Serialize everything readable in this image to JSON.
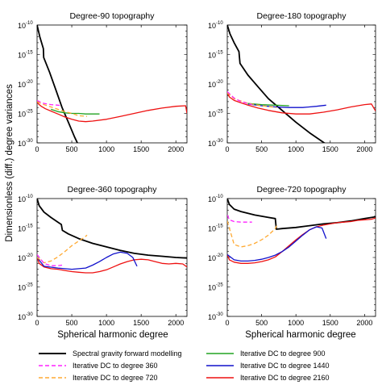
{
  "figure": {
    "ylabel": "Dimensionless (diff.) degree variances",
    "xlabel": "Spherical harmonic degree"
  },
  "legend": [
    {
      "key": "sgfm",
      "label": "Spectral gravity forward modelling",
      "color": "#000000",
      "dash": "solid"
    },
    {
      "key": "dc900",
      "label": "Iterative DC to degree 900",
      "color": "#22a322",
      "dash": "solid"
    },
    {
      "key": "dc360",
      "label": "Iterative DC to degree 360",
      "color": "#ff22ff",
      "dash": "dashed"
    },
    {
      "key": "dc1440",
      "label": "Iterative DC to degree 1440",
      "color": "#1111cc",
      "dash": "solid"
    },
    {
      "key": "dc720",
      "label": "Iterative DC to degree 720",
      "color": "#ffaa33",
      "dash": "dashed"
    },
    {
      "key": "dc2160",
      "label": "Iterative DC to degree 2160",
      "color": "#ee1111",
      "dash": "solid"
    }
  ],
  "chart_data": [
    {
      "type": "line",
      "title": "Degree-90 topography",
      "xlim": [
        0,
        2160
      ],
      "ylim_log10": [
        -30,
        -10
      ],
      "y_scale": "log",
      "x_ticks": [
        "0",
        "500",
        "1000",
        "1500",
        "2000"
      ],
      "y_ticks": [
        {
          "base": "10",
          "exp": "-10"
        },
        {
          "base": "10",
          "exp": "-15"
        },
        {
          "base": "10",
          "exp": "-20"
        },
        {
          "base": "10",
          "exp": "-25"
        },
        {
          "base": "10",
          "exp": "-30"
        }
      ],
      "series": [
        {
          "key": "sgfm",
          "x": [
            0,
            40,
            90,
            95,
            180,
            270,
            360,
            450,
            540,
            600
          ],
          "y_log10": [
            -10,
            -12,
            -14,
            -15.5,
            -18,
            -21,
            -24,
            -26.5,
            -29,
            -30.5
          ]
        },
        {
          "key": "dc2160",
          "x": [
            0,
            20,
            60,
            120,
            200,
            300,
            400,
            500,
            600,
            700,
            800,
            1000,
            1200,
            1400,
            1600,
            1800,
            2000,
            2140,
            2160
          ],
          "y_log10": [
            -23,
            -23.4,
            -23.8,
            -24.2,
            -24.6,
            -25.1,
            -25.6,
            -26,
            -26.3,
            -26.4,
            -26.3,
            -26,
            -25.5,
            -25,
            -24.5,
            -24.1,
            -23.8,
            -23.7,
            -25
          ]
        },
        {
          "key": "dc900",
          "x": [
            200,
            300,
            400,
            500,
            600,
            700,
            800,
            900
          ],
          "y_log10": [
            -24.3,
            -24.7,
            -24.9,
            -25.0,
            -25.0,
            -25.1,
            -25.1,
            -25.1
          ]
        },
        {
          "key": "dc720",
          "x": [
            0,
            50,
            100,
            200,
            300,
            400,
            500,
            600,
            720
          ],
          "y_log10": [
            -23,
            -23.3,
            -23.5,
            -23.9,
            -24.3,
            -24.7,
            -25,
            -25.4,
            -25.5
          ]
        },
        {
          "key": "dc360",
          "x": [
            0,
            50,
            100,
            200,
            300,
            360
          ],
          "y_log10": [
            -22.8,
            -23.1,
            -23.3,
            -23.5,
            -23.6,
            -23.7
          ]
        }
      ]
    },
    {
      "type": "line",
      "title": "Degree-180 topography",
      "xlim": [
        0,
        2160
      ],
      "ylim_log10": [
        -30,
        -10
      ],
      "y_scale": "log",
      "x_ticks": [
        "0",
        "500",
        "1000",
        "1500",
        "2000"
      ],
      "y_ticks": [
        {
          "base": "10",
          "exp": "-10"
        },
        {
          "base": "10",
          "exp": "-15"
        },
        {
          "base": "10",
          "exp": "-20"
        },
        {
          "base": "10",
          "exp": "-25"
        },
        {
          "base": "10",
          "exp": "-30"
        }
      ],
      "series": [
        {
          "key": "sgfm",
          "x": [
            0,
            40,
            100,
            170,
            185,
            300,
            450,
            600,
            800,
            1000,
            1200,
            1450
          ],
          "y_log10": [
            -10,
            -11.5,
            -13,
            -14.5,
            -16.5,
            -18.5,
            -20.5,
            -22.5,
            -24.5,
            -26.5,
            -28.3,
            -30.3
          ]
        },
        {
          "key": "dc2160",
          "x": [
            0,
            30,
            100,
            200,
            300,
            450,
            600,
            800,
            1000,
            1200,
            1400,
            1600,
            1800,
            2000,
            2100,
            2160
          ],
          "y_log10": [
            -21.5,
            -22.2,
            -22.8,
            -23.2,
            -23.6,
            -24.1,
            -24.5,
            -24.9,
            -25.1,
            -25.1,
            -24.8,
            -24.4,
            -23.9,
            -23.5,
            -23.4,
            -24.6
          ]
        },
        {
          "key": "dc1440",
          "x": [
            300,
            500,
            700,
            900,
            1100,
            1300,
            1440
          ],
          "y_log10": [
            -23.4,
            -23.7,
            -23.9,
            -24.0,
            -24.0,
            -23.8,
            -23.6
          ]
        },
        {
          "key": "dc900",
          "x": [
            300,
            500,
            700,
            900
          ],
          "y_log10": [
            -23.3,
            -23.5,
            -23.6,
            -23.7
          ]
        },
        {
          "key": "dc720",
          "x": [
            0,
            100,
            300,
            500,
            720
          ],
          "y_log10": [
            -21.5,
            -22.5,
            -23.3,
            -23.7,
            -24.0
          ]
        },
        {
          "key": "dc360",
          "x": [
            0,
            100,
            200,
            360
          ],
          "y_log10": [
            -21.3,
            -22.4,
            -23.0,
            -23.5
          ]
        }
      ]
    },
    {
      "type": "line",
      "title": "Degree-360 topography",
      "xlim": [
        0,
        2160
      ],
      "ylim_log10": [
        -30,
        -10
      ],
      "y_scale": "log",
      "x_ticks": [
        "0",
        "500",
        "1000",
        "1500",
        "2000"
      ],
      "y_ticks": [
        {
          "base": "10",
          "exp": "-10"
        },
        {
          "base": "10",
          "exp": "-15"
        },
        {
          "base": "10",
          "exp": "-20"
        },
        {
          "base": "10",
          "exp": "-25"
        },
        {
          "base": "10",
          "exp": "-30"
        }
      ],
      "series": [
        {
          "key": "sgfm",
          "x": [
            0,
            30,
            100,
            200,
            300,
            350,
            365,
            450,
            600,
            800,
            1000,
            1200,
            1400,
            1600,
            1800,
            2000,
            2160
          ],
          "y_log10": [
            -10,
            -11.2,
            -12.3,
            -13.2,
            -14.0,
            -14.4,
            -15.4,
            -16.0,
            -16.8,
            -17.6,
            -18.2,
            -18.8,
            -19.3,
            -19.6,
            -19.8,
            -20.0,
            -20.1
          ]
        },
        {
          "key": "dc2160",
          "x": [
            0,
            30,
            100,
            200,
            300,
            400,
            500,
            600,
            700,
            800,
            900,
            1000,
            1100,
            1200,
            1300,
            1400,
            1500,
            1600,
            1700,
            1800,
            1900,
            2000,
            2100,
            2160
          ],
          "y_log10": [
            -20.0,
            -21.0,
            -21.6,
            -21.9,
            -22.0,
            -22.2,
            -22.4,
            -22.5,
            -22.6,
            -22.6,
            -22.4,
            -22.1,
            -21.6,
            -21.1,
            -20.7,
            -20.4,
            -20.3,
            -20.4,
            -20.7,
            -21.0,
            -21.1,
            -21.0,
            -21.1,
            -21.6
          ]
        },
        {
          "key": "dc1440",
          "x": [
            0,
            100,
            300,
            500,
            700,
            800,
            900,
            1000,
            1100,
            1200,
            1300,
            1380,
            1440
          ],
          "y_log10": [
            -20.0,
            -21.5,
            -21.8,
            -22.0,
            -21.8,
            -21.3,
            -20.7,
            -20.0,
            -19.4,
            -19.1,
            -19.3,
            -20.0,
            -21.5
          ]
        },
        {
          "key": "dc720",
          "x": [
            0,
            100,
            200,
            300,
            400,
            500,
            600,
            680,
            720
          ],
          "y_log10": [
            -20.0,
            -20.9,
            -20.6,
            -19.9,
            -19.0,
            -18.0,
            -17.2,
            -16.6,
            -16.2
          ]
        },
        {
          "key": "dc360",
          "x": [
            0,
            100,
            200,
            300,
            360
          ],
          "y_log10": [
            -19.5,
            -21.0,
            -21.4,
            -21.4,
            -21.3
          ]
        }
      ]
    },
    {
      "type": "line",
      "title": "Degree-720 topography",
      "xlim": [
        0,
        2160
      ],
      "ylim_log10": [
        -30,
        -10
      ],
      "y_scale": "log",
      "x_ticks": [
        "0",
        "500",
        "1000",
        "1500",
        "2000"
      ],
      "y_ticks": [
        {
          "base": "10",
          "exp": "-10"
        },
        {
          "base": "10",
          "exp": "-15"
        },
        {
          "base": "10",
          "exp": "-20"
        },
        {
          "base": "10",
          "exp": "-25"
        },
        {
          "base": "10",
          "exp": "-30"
        }
      ],
      "series": [
        {
          "key": "sgfm",
          "x": [
            0,
            30,
            100,
            200,
            300,
            400,
            500,
            600,
            700,
            715,
            800,
            1000,
            1200,
            1400,
            1600,
            1800,
            2000,
            2160
          ],
          "y_log10": [
            -10,
            -11,
            -11.8,
            -12.2,
            -12.5,
            -12.8,
            -13.0,
            -13.2,
            -13.4,
            -15.2,
            -15.1,
            -14.9,
            -14.6,
            -14.3,
            -14.1,
            -13.8,
            -13.4,
            -13.1
          ]
        },
        {
          "key": "dc2160",
          "x": [
            0,
            30,
            100,
            200,
            300,
            400,
            500,
            600,
            700,
            800,
            900,
            1000,
            1100,
            1200,
            1300,
            1400,
            1500,
            1600,
            1700,
            1800,
            1900,
            2000,
            2100,
            2160
          ],
          "y_log10": [
            -19.5,
            -20.4,
            -20.8,
            -21.0,
            -21.0,
            -20.9,
            -20.7,
            -20.4,
            -19.9,
            -19.0,
            -18.0,
            -17.0,
            -16.1,
            -15.3,
            -14.8,
            -14.5,
            -14.3,
            -14.1,
            -14.0,
            -13.9,
            -13.7,
            -13.6,
            -13.5,
            -13.3
          ]
        },
        {
          "key": "dc1440",
          "x": [
            0,
            100,
            200,
            300,
            400,
            500,
            600,
            700,
            800,
            900,
            1000,
            1100,
            1200,
            1300,
            1380,
            1440
          ],
          "y_log10": [
            -19.5,
            -20.4,
            -20.6,
            -20.6,
            -20.5,
            -20.3,
            -20.0,
            -19.6,
            -19.0,
            -18.2,
            -17.2,
            -16.2,
            -15.3,
            -14.8,
            -15.0,
            -16.8
          ]
        },
        {
          "key": "dc720",
          "x": [
            0,
            100,
            200,
            300,
            400,
            500,
            600,
            700,
            720
          ],
          "y_log10": [
            -13.8,
            -17.8,
            -18.2,
            -18.0,
            -17.6,
            -17.0,
            -16.2,
            -15.1,
            -14.6
          ]
        },
        {
          "key": "dc360",
          "x": [
            0,
            30,
            100,
            200,
            300,
            360
          ],
          "y_log10": [
            -12.8,
            -13.6,
            -13.9,
            -14.0,
            -14.0,
            -14.0
          ]
        }
      ]
    }
  ]
}
